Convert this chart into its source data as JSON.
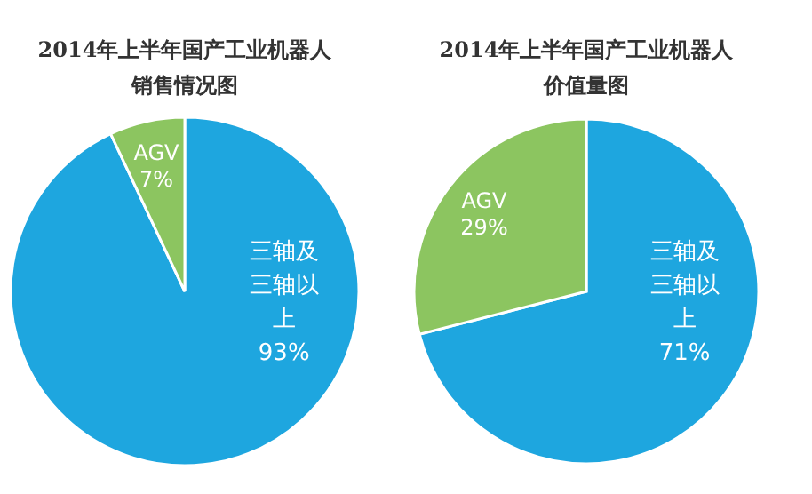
{
  "chart_data": [
    {
      "type": "pie",
      "title": "2014年上半年国产工业机器人销售情况图",
      "categories": [
        "三轴及三轴以上",
        "AGV"
      ],
      "values": [
        93,
        7
      ],
      "value_labels": [
        "93%",
        "7%"
      ],
      "colors": [
        "#1ea6df",
        "#8cc560"
      ],
      "legend": false
    },
    {
      "type": "pie",
      "title": "2014年上半年国产工业机器人价值量图",
      "categories": [
        "三轴及三轴以上",
        "AGV"
      ],
      "values": [
        71,
        29
      ],
      "value_labels": [
        "71%",
        "29%"
      ],
      "colors": [
        "#1ea6df",
        "#8cc560"
      ],
      "legend": false
    }
  ]
}
